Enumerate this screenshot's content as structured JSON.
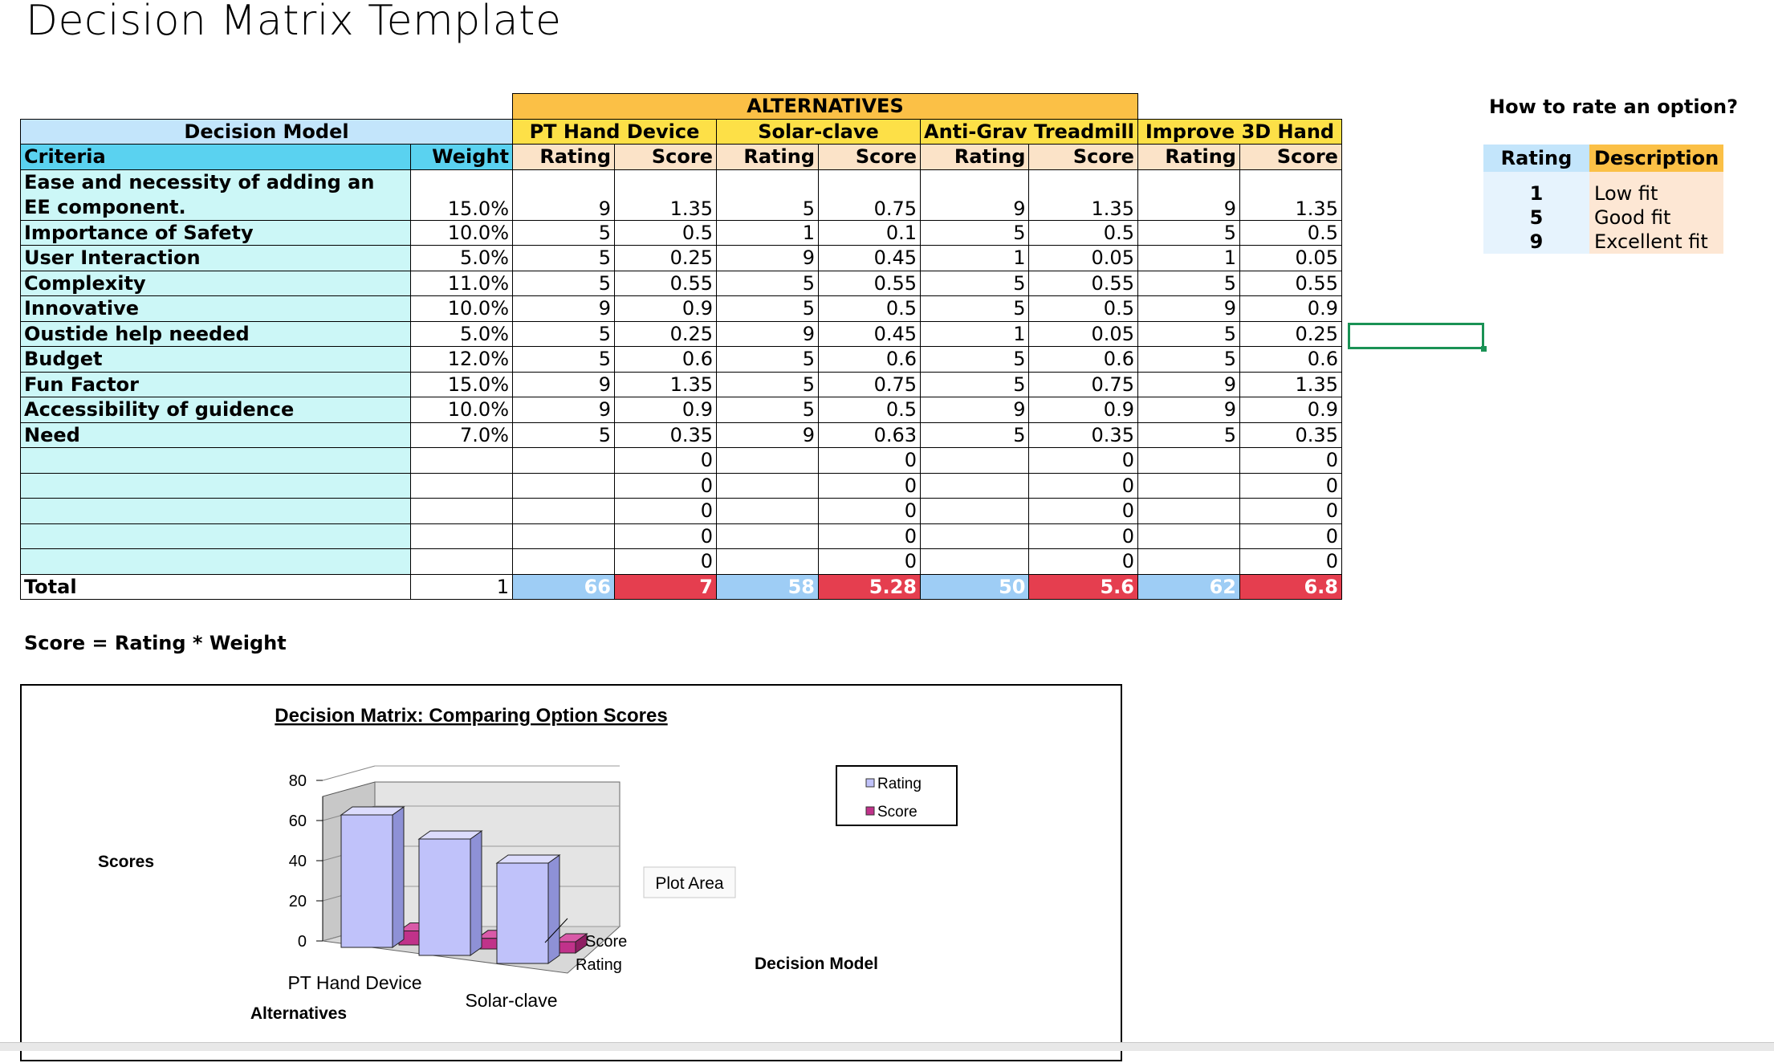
{
  "page": {
    "title": "Decision Matrix Template",
    "formula": "Score = Rating * Weight"
  },
  "matrix": {
    "alternatives_label": "ALTERNATIVES",
    "decision_model_label": "Decision Model",
    "criteria_label": "Criteria",
    "weight_label": "Weight",
    "rating_label": "Rating",
    "score_label": "Score",
    "options": [
      "PT Hand Device",
      "Solar-clave",
      "Anti-Grav Treadmill",
      "Improve 3D Hand"
    ],
    "rows": [
      {
        "criteria": "Ease and necessity of adding an EE component.",
        "weight": "15.0%",
        "cells": [
          "9",
          "1.35",
          "5",
          "0.75",
          "9",
          "1.35",
          "9",
          "1.35"
        ]
      },
      {
        "criteria": "Importance of Safety",
        "weight": "10.0%",
        "cells": [
          "5",
          "0.5",
          "1",
          "0.1",
          "5",
          "0.5",
          "5",
          "0.5"
        ]
      },
      {
        "criteria": "User Interaction",
        "weight": "5.0%",
        "cells": [
          "5",
          "0.25",
          "9",
          "0.45",
          "1",
          "0.05",
          "1",
          "0.05"
        ]
      },
      {
        "criteria": "Complexity",
        "weight": "11.0%",
        "cells": [
          "5",
          "0.55",
          "5",
          "0.55",
          "5",
          "0.55",
          "5",
          "0.55"
        ]
      },
      {
        "criteria": "Innovative",
        "weight": "10.0%",
        "cells": [
          "9",
          "0.9",
          "5",
          "0.5",
          "5",
          "0.5",
          "9",
          "0.9"
        ]
      },
      {
        "criteria": "Oustide help needed",
        "weight": "5.0%",
        "cells": [
          "5",
          "0.25",
          "9",
          "0.45",
          "1",
          "0.05",
          "5",
          "0.25"
        ]
      },
      {
        "criteria": "Budget",
        "weight": "12.0%",
        "cells": [
          "5",
          "0.6",
          "5",
          "0.6",
          "5",
          "0.6",
          "5",
          "0.6"
        ]
      },
      {
        "criteria": "Fun Factor",
        "weight": "15.0%",
        "cells": [
          "9",
          "1.35",
          "5",
          "0.75",
          "5",
          "0.75",
          "9",
          "1.35"
        ]
      },
      {
        "criteria": "Accessibility of guidence",
        "weight": "10.0%",
        "cells": [
          "9",
          "0.9",
          "5",
          "0.5",
          "9",
          "0.9",
          "9",
          "0.9"
        ]
      },
      {
        "criteria": "Need",
        "weight": "7.0%",
        "cells": [
          "5",
          "0.35",
          "9",
          "0.63",
          "5",
          "0.35",
          "5",
          "0.35"
        ]
      },
      {
        "criteria": "",
        "weight": "",
        "cells": [
          "",
          "0",
          "",
          "0",
          "",
          "0",
          "",
          "0"
        ]
      },
      {
        "criteria": "",
        "weight": "",
        "cells": [
          "",
          "0",
          "",
          "0",
          "",
          "0",
          "",
          "0"
        ]
      },
      {
        "criteria": "",
        "weight": "",
        "cells": [
          "",
          "0",
          "",
          "0",
          "",
          "0",
          "",
          "0"
        ]
      },
      {
        "criteria": "",
        "weight": "",
        "cells": [
          "",
          "0",
          "",
          "0",
          "",
          "0",
          "",
          "0"
        ]
      },
      {
        "criteria": "",
        "weight": "",
        "cells": [
          "",
          "0",
          "",
          "0",
          "",
          "0",
          "",
          "0"
        ]
      }
    ],
    "total": {
      "label": "Total",
      "weight": "1",
      "cells": [
        "66",
        "7",
        "58",
        "5.28",
        "50",
        "5.6",
        "62",
        "6.8"
      ]
    }
  },
  "legend": {
    "question": "How to rate an option?",
    "rating_header": "Rating",
    "description_header": "Description",
    "items": [
      {
        "rating": "1",
        "description": "Low fit"
      },
      {
        "rating": "5",
        "description": "Good fit"
      },
      {
        "rating": "9",
        "description": "Excellent fit"
      }
    ]
  },
  "chart_data": {
    "type": "bar",
    "title": "Decision Matrix: Comparing Option Scores",
    "categories": [
      "PT Hand Device",
      "Solar-clave",
      "Anti-Grav Treadmill"
    ],
    "visible_category_labels": [
      "PT Hand Device",
      "Solar-clave"
    ],
    "series": [
      {
        "name": "Rating",
        "values": [
          66,
          58,
          50
        ],
        "color": "#c0c2fa"
      },
      {
        "name": "Score",
        "values": [
          7,
          5.28,
          5.6
        ],
        "color": "#c0328a"
      }
    ],
    "yticks": [
      "80",
      "60",
      "40",
      "20",
      "0"
    ],
    "ylim": [
      0,
      80
    ],
    "ylabel": "Scores",
    "xlabel": "Alternatives",
    "zlabel": "Decision Model",
    "depth_labels": [
      "Score",
      "Rating"
    ],
    "tooltip": "Plot Area"
  }
}
